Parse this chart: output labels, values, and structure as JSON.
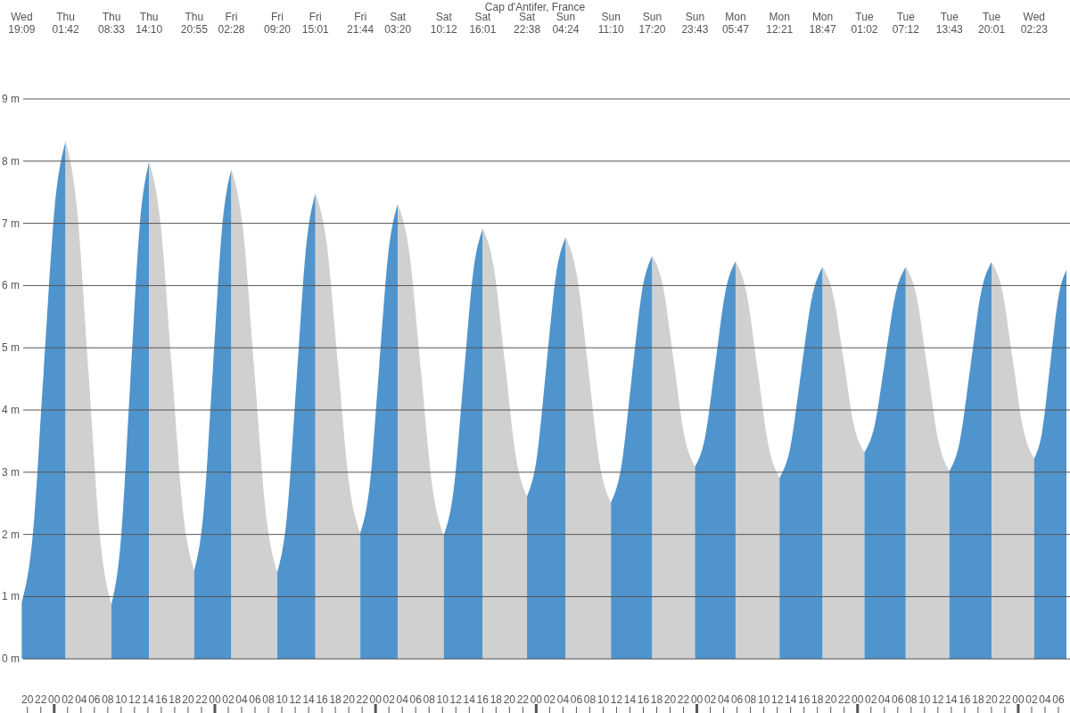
{
  "chart_data": {
    "type": "area",
    "title": "Cap d'Antifer, France",
    "xlim": [
      19.1,
      175.2
    ],
    "xticks": [
      {
        "value": 20,
        "label": "20"
      },
      {
        "value": 22,
        "label": "22"
      },
      {
        "value": 24,
        "label": "00"
      },
      {
        "value": 26,
        "label": "02"
      },
      {
        "value": 28,
        "label": "04"
      },
      {
        "value": 30,
        "label": "06"
      },
      {
        "value": 32,
        "label": "08"
      },
      {
        "value": 34,
        "label": "10"
      },
      {
        "value": 36,
        "label": "12"
      },
      {
        "value": 38,
        "label": "14"
      },
      {
        "value": 40,
        "label": "16"
      },
      {
        "value": 42,
        "label": "18"
      },
      {
        "value": 44,
        "label": "20"
      },
      {
        "value": 46,
        "label": "22"
      },
      {
        "value": 48,
        "label": "00"
      },
      {
        "value": 50,
        "label": "02"
      },
      {
        "value": 52,
        "label": "04"
      },
      {
        "value": 54,
        "label": "06"
      },
      {
        "value": 56,
        "label": "08"
      },
      {
        "value": 58,
        "label": "10"
      },
      {
        "value": 60,
        "label": "12"
      },
      {
        "value": 62,
        "label": "14"
      },
      {
        "value": 64,
        "label": "16"
      },
      {
        "value": 66,
        "label": "18"
      },
      {
        "value": 68,
        "label": "20"
      },
      {
        "value": 70,
        "label": "22"
      },
      {
        "value": 72,
        "label": "00"
      },
      {
        "value": 74,
        "label": "02"
      },
      {
        "value": 76,
        "label": "04"
      },
      {
        "value": 78,
        "label": "06"
      },
      {
        "value": 80,
        "label": "08"
      },
      {
        "value": 82,
        "label": "10"
      },
      {
        "value": 84,
        "label": "12"
      },
      {
        "value": 86,
        "label": "14"
      },
      {
        "value": 88,
        "label": "16"
      },
      {
        "value": 90,
        "label": "18"
      },
      {
        "value": 92,
        "label": "20"
      },
      {
        "value": 94,
        "label": "22"
      },
      {
        "value": 96,
        "label": "00"
      },
      {
        "value": 98,
        "label": "02"
      },
      {
        "value": 100,
        "label": "04"
      },
      {
        "value": 102,
        "label": "06"
      },
      {
        "value": 104,
        "label": "08"
      },
      {
        "value": 106,
        "label": "10"
      },
      {
        "value": 108,
        "label": "12"
      },
      {
        "value": 110,
        "label": "14"
      },
      {
        "value": 112,
        "label": "16"
      },
      {
        "value": 114,
        "label": "18"
      },
      {
        "value": 116,
        "label": "20"
      },
      {
        "value": 118,
        "label": "22"
      },
      {
        "value": 120,
        "label": "00"
      },
      {
        "value": 122,
        "label": "02"
      },
      {
        "value": 124,
        "label": "04"
      },
      {
        "value": 126,
        "label": "06"
      },
      {
        "value": 128,
        "label": "08"
      },
      {
        "value": 130,
        "label": "10"
      },
      {
        "value": 132,
        "label": "12"
      },
      {
        "value": 134,
        "label": "14"
      },
      {
        "value": 136,
        "label": "16"
      },
      {
        "value": 138,
        "label": "18"
      },
      {
        "value": 140,
        "label": "20"
      },
      {
        "value": 142,
        "label": "22"
      },
      {
        "value": 144,
        "label": "00"
      },
      {
        "value": 146,
        "label": "02"
      },
      {
        "value": 148,
        "label": "04"
      },
      {
        "value": 150,
        "label": "06"
      },
      {
        "value": 152,
        "label": "08"
      },
      {
        "value": 154,
        "label": "10"
      },
      {
        "value": 156,
        "label": "12"
      },
      {
        "value": 158,
        "label": "14"
      },
      {
        "value": 160,
        "label": "16"
      },
      {
        "value": 162,
        "label": "18"
      },
      {
        "value": 164,
        "label": "20"
      },
      {
        "value": 166,
        "label": "22"
      },
      {
        "value": 168,
        "label": "00"
      },
      {
        "value": 170,
        "label": "02"
      },
      {
        "value": 172,
        "label": "04"
      },
      {
        "value": 174,
        "label": "06"
      }
    ],
    "annotations": [
      "Wed 19:09",
      "Thu 01:42",
      "Thu 08:33",
      "Thu 14:10",
      "Thu 20:55",
      "Fri 02:28",
      "Fri 09:20",
      "Fri 15:01",
      "Fri 21:44",
      "Sat 03:20",
      "Sat 10:12",
      "Sat 16:01",
      "Sat 22:38",
      "Sun 04:24",
      "Sun 11:10",
      "Sun 17:20",
      "Sun 23:43",
      "Mon 05:47",
      "Mon 12:21",
      "Mon 18:47",
      "Tue 01:02",
      "Tue 07:12",
      "Tue 13:43",
      "Tue 20:01",
      "Wed 02:23"
    ],
    "ylim": [
      -0.87,
      9
    ],
    "yticks": [
      {
        "value": 0,
        "label": "0 m"
      },
      {
        "value": 1,
        "label": "1 m"
      },
      {
        "value": 2,
        "label": "2 m"
      },
      {
        "value": 3,
        "label": "3 m"
      },
      {
        "value": 4,
        "label": "4 m"
      },
      {
        "value": 5,
        "label": "5 m"
      },
      {
        "value": 6,
        "label": "6 m"
      },
      {
        "value": 7,
        "label": "7 m"
      },
      {
        "value": 8,
        "label": "8 m"
      },
      {
        "value": 9,
        "label": "9 m"
      }
    ],
    "grid": "y",
    "series": [
      {
        "color": "#4f94cd",
        "x": [
          19.15,
          20.79,
          22.42,
          24.06,
          25.7
        ],
        "values": [
          0.9,
          1.98,
          4.61,
          7.24,
          8.32
        ]
      },
      {
        "color": "#d0d0d0",
        "x": [
          25.7,
          27.41,
          29.13,
          30.84,
          32.55
        ],
        "values": [
          8.32,
          7.23,
          4.6,
          1.96,
          0.87
        ]
      },
      {
        "color": "#4f94cd",
        "x": [
          32.55,
          33.96,
          35.36,
          36.77,
          38.17
        ],
        "values": [
          0.87,
          1.91,
          4.43,
          6.95,
          7.99
        ]
      },
      {
        "color": "#d0d0d0",
        "x": [
          38.17,
          39.86,
          41.55,
          43.23,
          44.92
        ],
        "values": [
          7.99,
          7.03,
          4.7,
          2.38,
          1.42
        ]
      },
      {
        "color": "#4f94cd",
        "x": [
          44.92,
          46.31,
          47.7,
          49.08,
          50.47
        ],
        "values": [
          1.42,
          2.36,
          4.65,
          6.93,
          7.87
        ]
      },
      {
        "color": "#d0d0d0",
        "x": [
          50.47,
          52.19,
          53.9,
          55.62,
          57.33
        ],
        "values": [
          7.87,
          6.92,
          4.63,
          2.34,
          1.39
        ]
      },
      {
        "color": "#4f94cd",
        "x": [
          57.33,
          58.75,
          60.18,
          61.6,
          63.02
        ],
        "values": [
          1.39,
          2.28,
          4.44,
          6.59,
          7.48
        ]
      },
      {
        "color": "#d0d0d0",
        "x": [
          63.02,
          64.7,
          66.38,
          68.05,
          69.73
        ],
        "values": [
          7.48,
          6.68,
          4.75,
          2.82,
          2.02
        ]
      },
      {
        "color": "#4f94cd",
        "x": [
          69.73,
          71.13,
          72.53,
          73.93,
          75.33
        ],
        "values": [
          2.02,
          2.79,
          4.67,
          6.54,
          7.31
        ]
      },
      {
        "color": "#d0d0d0",
        "x": [
          75.33,
          77.05,
          78.77,
          80.48,
          82.2
        ],
        "values": [
          7.31,
          6.53,
          4.65,
          2.77,
          1.99
        ]
      },
      {
        "color": "#4f94cd",
        "x": [
          82.2,
          83.66,
          85.11,
          86.57,
          88.02
        ],
        "values": [
          1.99,
          2.71,
          4.46,
          6.2,
          6.92
        ]
      },
      {
        "color": "#d0d0d0",
        "x": [
          88.02,
          89.67,
          91.33,
          92.98,
          94.63
        ],
        "values": [
          6.92,
          6.29,
          4.77,
          3.24,
          2.61
        ]
      },
      {
        "color": "#4f94cd",
        "x": [
          94.63,
          96.07,
          97.52,
          98.96,
          100.4
        ],
        "values": [
          2.61,
          3.22,
          4.7,
          6.17,
          6.78
        ]
      },
      {
        "color": "#d0d0d0",
        "x": [
          100.4,
          102.09,
          103.79,
          105.48,
          107.17
        ],
        "values": [
          6.78,
          6.16,
          4.65,
          3.13,
          2.51
        ]
      },
      {
        "color": "#4f94cd",
        "x": [
          107.17,
          108.71,
          110.25,
          111.79,
          113.33
        ],
        "values": [
          2.51,
          3.09,
          4.5,
          5.9,
          6.48
        ]
      },
      {
        "color": "#d0d0d0",
        "x": [
          113.33,
          114.93,
          116.53,
          118.12,
          119.72
        ],
        "values": [
          6.48,
          5.99,
          4.79,
          3.59,
          3.09
        ]
      },
      {
        "color": "#4f94cd",
        "x": [
          119.72,
          121.24,
          122.75,
          124.27,
          125.78
        ],
        "values": [
          3.09,
          3.57,
          4.74,
          5.91,
          6.39
        ]
      },
      {
        "color": "#d0d0d0",
        "x": [
          125.78,
          127.42,
          129.07,
          130.71,
          132.35
        ],
        "values": [
          6.39,
          5.88,
          4.65,
          3.42,
          2.91
        ]
      },
      {
        "color": "#4f94cd",
        "x": [
          132.35,
          133.96,
          135.57,
          137.17,
          138.78
        ],
        "values": [
          2.91,
          3.4,
          4.61,
          5.8,
          6.3
        ]
      },
      {
        "color": "#d0d0d0",
        "x": [
          138.78,
          140.34,
          141.91,
          143.47,
          145.03
        ],
        "values": [
          6.3,
          5.86,
          4.81,
          3.75,
          3.32
        ]
      },
      {
        "color": "#4f94cd",
        "x": [
          145.03,
          146.57,
          148.12,
          149.66,
          151.2
        ],
        "values": [
          3.32,
          3.76,
          4.81,
          5.86,
          6.3
        ]
      },
      {
        "color": "#d0d0d0",
        "x": [
          151.2,
          152.83,
          154.46,
          156.09,
          157.72
        ],
        "values": [
          6.3,
          5.82,
          4.66,
          3.5,
          3.02
        ]
      },
      {
        "color": "#4f94cd",
        "x": [
          157.72,
          159.3,
          160.87,
          162.45,
          164.02
        ],
        "values": [
          3.02,
          3.51,
          4.7,
          5.89,
          6.38
        ]
      },
      {
        "color": "#d0d0d0",
        "x": [
          164.02,
          165.61,
          167.2,
          168.79,
          170.38
        ],
        "values": [
          6.38,
          5.92,
          4.8,
          3.68,
          3.22
        ]
      },
      {
        "color": "#4f94cd",
        "x": [
          170.38,
          171.59,
          172.79,
          174.0,
          175.2
        ],
        "values": [
          3.22,
          3.66,
          4.74,
          5.81,
          6.25
        ]
      }
    ]
  }
}
